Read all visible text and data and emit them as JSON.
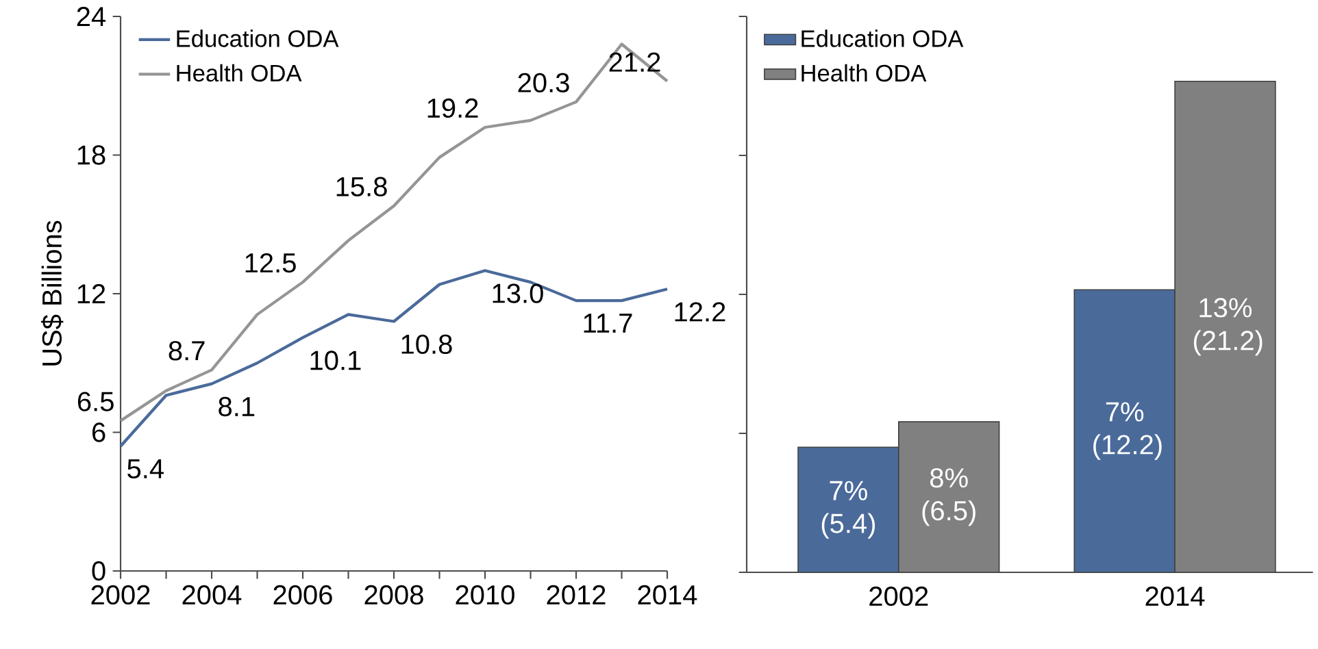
{
  "chart_data": [
    {
      "type": "line",
      "ylabel": "US$ Billions",
      "x": [
        2002,
        2003,
        2004,
        2005,
        2006,
        2007,
        2008,
        2009,
        2010,
        2011,
        2012,
        2013,
        2014
      ],
      "series": [
        {
          "name": "Education ODA",
          "color": "#4a6a9a",
          "values": [
            5.4,
            7.6,
            8.1,
            9.0,
            10.1,
            11.1,
            10.8,
            12.4,
            13.0,
            12.5,
            11.7,
            11.7,
            12.2
          ],
          "value_labels": [
            "5.4",
            null,
            "8.1",
            null,
            "10.1",
            null,
            "10.8",
            null,
            "13.0",
            null,
            "11.7",
            null,
            "12.2"
          ]
        },
        {
          "name": "Health ODA",
          "color": "#959595",
          "values": [
            6.5,
            7.8,
            8.7,
            11.1,
            12.5,
            14.3,
            15.8,
            17.9,
            19.2,
            19.5,
            20.3,
            22.8,
            21.2
          ],
          "value_labels": [
            "6.5",
            null,
            "8.7",
            null,
            "12.5",
            null,
            "15.8",
            null,
            "19.2",
            null,
            "20.3",
            null,
            "21.2"
          ]
        }
      ],
      "xlim": [
        2002,
        2014
      ],
      "xticks": [
        2002,
        {
          "value": 2003,
          "label": null
        },
        2004,
        {
          "value": 2005,
          "label": null
        },
        2006,
        {
          "value": 2007,
          "label": null
        },
        2008,
        {
          "value": 2009,
          "label": null
        },
        2010,
        {
          "value": 2011,
          "label": null
        },
        2012,
        {
          "value": 2013,
          "label": null
        },
        2014
      ],
      "ylim": [
        0,
        24
      ],
      "yticks": [
        0,
        6,
        12,
        18,
        24
      ],
      "legend": "top left"
    },
    {
      "type": "bar",
      "categories": [
        "2002",
        "2014"
      ],
      "series": [
        {
          "name": "Education ODA",
          "color": "#4a6a9a",
          "values": [
            5.4,
            12.2
          ],
          "value_labels": [
            "7% (5.4)",
            "7% (12.2)"
          ]
        },
        {
          "name": "Health ODA",
          "color": "#808080",
          "values": [
            6.5,
            21.2
          ],
          "value_labels": [
            "8% (6.5)",
            "13% (21.2)"
          ]
        }
      ],
      "ylim": [
        0,
        24
      ],
      "yticks": [
        0,
        6,
        12,
        18,
        24
      ],
      "tick_labels": "x",
      "legend": "top left"
    }
  ]
}
